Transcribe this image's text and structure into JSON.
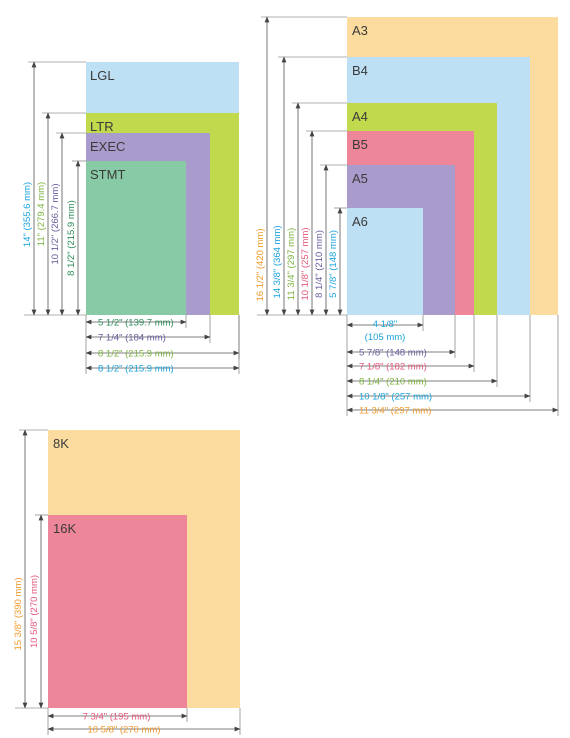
{
  "colors": {
    "blue_paper": "#bde0f5",
    "green_paper": "#c1d94c",
    "purple_paper": "#a99ccd",
    "teal_paper": "#89caa6",
    "orange_paper": "#fbdc9e",
    "pink_paper": "#ee8699",
    "blue_text": "#1ba3db",
    "green_text": "#7cb342",
    "purple_text": "#6a5d9e",
    "darkgreen_text": "#2e8b57",
    "orange_text": "#f09a2c",
    "pink_text": "#e5567a"
  },
  "diagram1": {
    "papers": [
      {
        "label": "LGL",
        "color": "blue_paper"
      },
      {
        "label": "LTR",
        "color": "green_paper"
      },
      {
        "label": "EXEC",
        "color": "purple_paper"
      },
      {
        "label": "STMT",
        "color": "teal_paper"
      }
    ],
    "heights": [
      {
        "text": "14\" (355.6 mm)",
        "color": "blue_text"
      },
      {
        "text": "11\" (279.4 mm)",
        "color": "green_text"
      },
      {
        "text": "10 1/2\" (266.7 mm)",
        "color": "purple_text"
      },
      {
        "text": "8 1/2\" (215.9 mm)",
        "color": "darkgreen_text"
      }
    ],
    "widths": [
      {
        "text": "5 1/2\" (139.7 mm)",
        "color": "darkgreen_text"
      },
      {
        "text": "7 1/4\" (184 mm)",
        "color": "purple_text"
      },
      {
        "text": "8 1/2\" (215.9 mm)",
        "color": "green_text"
      },
      {
        "text": "8 1/2\" (215.9 mm)",
        "color": "blue_text"
      }
    ]
  },
  "diagram2": {
    "papers": [
      {
        "label": "A3",
        "color": "orange_paper"
      },
      {
        "label": "B4",
        "color": "blue_paper"
      },
      {
        "label": "A4",
        "color": "green_paper"
      },
      {
        "label": "B5",
        "color": "pink_paper"
      },
      {
        "label": "A5",
        "color": "purple_paper"
      },
      {
        "label": "A6",
        "color": "blue_paper"
      }
    ],
    "heights": [
      {
        "text": "16 1/2\" (420 mm)",
        "color": "orange_text"
      },
      {
        "text": "14 3/8\" (364 mm)",
        "color": "blue_text"
      },
      {
        "text": "11 3/4\" (297 mm)",
        "color": "green_text"
      },
      {
        "text": "10 1/8\" (257 mm)",
        "color": "pink_text"
      },
      {
        "text": "8 1/4\" (210 mm)",
        "color": "purple_text"
      },
      {
        "text": "5 7/8\" (148 mm)",
        "color": "blue_text"
      }
    ],
    "width_a6_line1": "4 1/8\"",
    "width_a6_line2": "(105 mm)",
    "widths": [
      {
        "text": "5 7/8\" (148 mm)",
        "color": "purple_text"
      },
      {
        "text": "7 1/8\" (182 mm)",
        "color": "pink_text"
      },
      {
        "text": "8 1/4\" (210 mm)",
        "color": "green_text"
      },
      {
        "text": "10 1/8\" (257 mm)",
        "color": "blue_text"
      },
      {
        "text": "11 3/4\" (297 mm)",
        "color": "orange_text"
      }
    ]
  },
  "diagram3": {
    "papers": [
      {
        "label": "8K",
        "color": "orange_paper"
      },
      {
        "label": "16K",
        "color": "pink_paper"
      }
    ],
    "heights": [
      {
        "text": "15 3/8\" (390 mm)",
        "color": "orange_text"
      },
      {
        "text": "10 5/8\" (270 mm)",
        "color": "pink_text"
      }
    ],
    "widths": [
      {
        "text": "7 3/4\" (195 mm)",
        "color": "pink_text"
      },
      {
        "text": "10 5/8\" (270 mm)",
        "color": "orange_text"
      }
    ]
  }
}
